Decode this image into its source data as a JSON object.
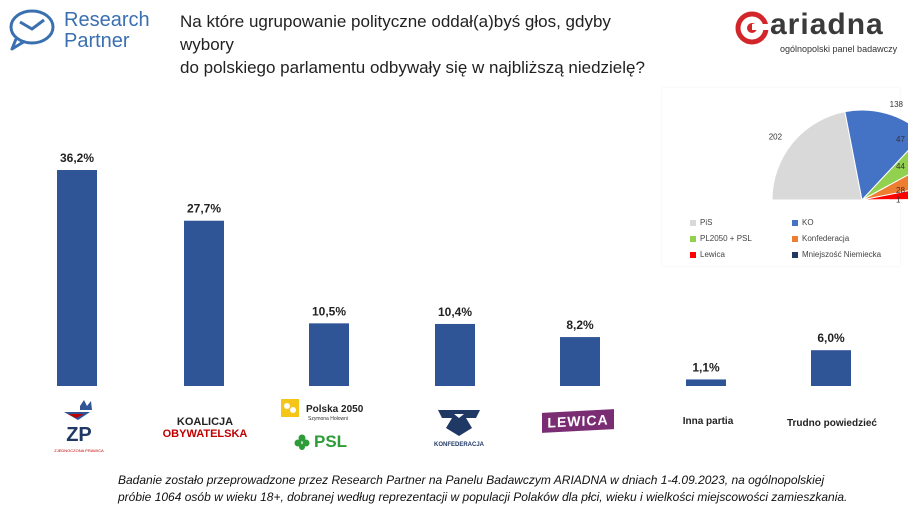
{
  "brand_left": {
    "line1": "Research",
    "line2": "Partner",
    "color": "#3a6fb0"
  },
  "title": {
    "line1": "Na które ugrupowanie polityczne oddał(a)byś głos, gdyby wybory",
    "line2": "do polskiego parlamentu odbywały się w najbliższą niedzielę?"
  },
  "brand_right": {
    "word": "ariadna",
    "subtitle": "ogólnopolski panel badawczy",
    "accent": "#d3262a"
  },
  "chart_data": [
    {
      "type": "bar",
      "categories": [
        "ZP",
        "Koalicja Obywatelska",
        "Polska 2050 / PSL",
        "Konfederacja",
        "Lewica",
        "Inna partia",
        "Trudno powiedzieć"
      ],
      "values": [
        36.2,
        27.7,
        10.5,
        10.4,
        8.2,
        1.1,
        6.0
      ],
      "value_labels": [
        "36,2%",
        "27,7%",
        "10,5%",
        "10,4%",
        "8,2%",
        "1,1%",
        "6,0%"
      ],
      "bar_color": "#2f5597",
      "ylim": [
        0,
        36.2
      ],
      "grid": false,
      "legend": "none"
    },
    {
      "type": "pie",
      "subtype": "half-donut seat distribution",
      "categories": [
        "PiS",
        "KO",
        "PL2050 + PSL",
        "Konfederacja",
        "Lewica",
        "Mniejszość Niemiecka"
      ],
      "values": [
        202,
        138,
        47,
        44,
        28,
        1
      ],
      "value_labels": [
        "202",
        "138",
        "47",
        "44",
        "28",
        "1"
      ],
      "colors": [
        "#d9d9d9",
        "#4472c4",
        "#92d050",
        "#ed7d31",
        "#ff0000",
        "#1f3864"
      ],
      "legend": "bottom"
    }
  ],
  "party_logos": {
    "zp": {
      "text": "ZP",
      "caption": "ZJEDNOCZONA PRAWICA",
      "icon": "crown-icon"
    },
    "ko": {
      "line1": "KOALICJA",
      "line2": "OBYWATELSKA"
    },
    "p2050": {
      "line1": "Polska 2050",
      "line2": "Szymona Hołowni",
      "icon": "polska2050-icon"
    },
    "psl": {
      "text": "PSL",
      "icon": "clover-icon"
    },
    "konf": {
      "text": "KONFEDERACJA",
      "icon": "eagle-icon"
    },
    "lewica": {
      "text": "LEWICA"
    },
    "inna": {
      "text": "Inna partia"
    },
    "trudno": {
      "text": "Trudno powiedzieć"
    }
  },
  "footnote": {
    "line1": "Badanie zostało przeprowadzone przez Research Partner na Panelu Badawczym ARIADNA w dniach 1-4.09.2023, na ogólnopolskiej",
    "line2": "próbie 1064 osób w wieku 18+, dobranej według reprezentacji w populacji Polaków dla płci, wieku i wielkości miejscowości zamieszkania."
  }
}
